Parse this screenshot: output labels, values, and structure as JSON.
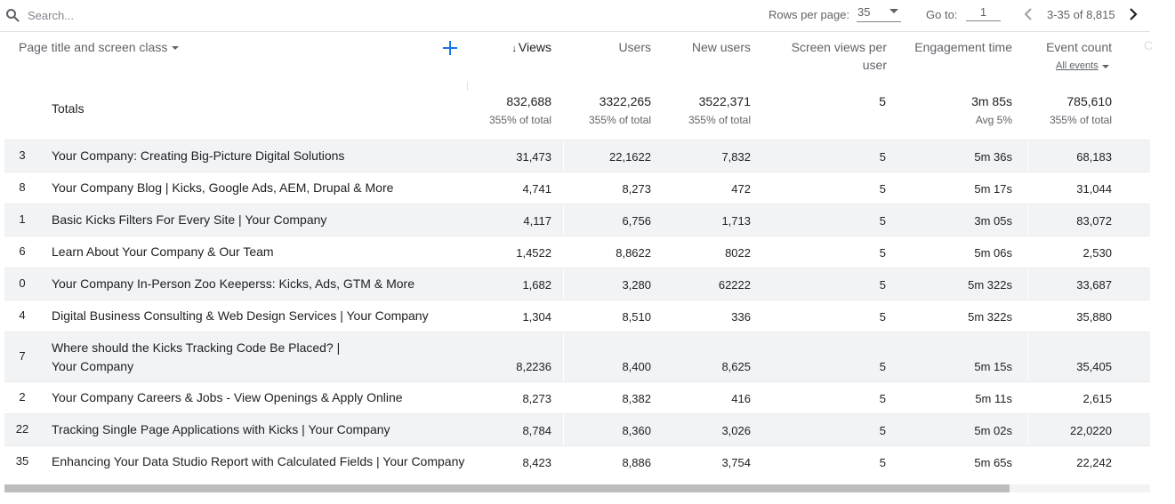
{
  "toolbar": {
    "search_placeholder": "Search...",
    "search_value": "",
    "rows_per_page_label": "Rows per page:",
    "rows_per_page_value": "35",
    "go_to_label": "Go to:",
    "go_to_value": "1",
    "range_text": "3-35 of 8,815",
    "prev_icon": "chevron-left-icon",
    "next_icon": "chevron-right-icon",
    "search_icon": "search-icon"
  },
  "header": {
    "dimension_label": "Page title and screen class",
    "add_icon": "plus-icon",
    "sort_arrow": "↓",
    "columns": [
      {
        "key": "views",
        "label": "Views"
      },
      {
        "key": "users",
        "label": "Users"
      },
      {
        "key": "new_users",
        "label": "New users"
      },
      {
        "key": "svpu",
        "label": "Screen views per user"
      },
      {
        "key": "engagement",
        "label": "Engagement time"
      },
      {
        "key": "events",
        "label": "Event count"
      }
    ],
    "events_filter": "All events",
    "accent_color": "#1a73e8"
  },
  "totals": {
    "label": "Totals",
    "views": "832,688",
    "views_sub": "355% of total",
    "users": "3322,265",
    "users_sub": "355% of total",
    "new_users": "3522,371",
    "new_users_sub": "355% of total",
    "svpu": "5",
    "engagement": "3m 85s",
    "engagement_sub": "Avg 5%",
    "events": "785,610",
    "events_sub": "355% of total"
  },
  "rows": [
    {
      "idx": "3",
      "title": [
        "Your Company: Creating Big-Picture Digital Solutions"
      ],
      "views": "31,473",
      "users": "22,1622",
      "new_users": "7,832",
      "svpu": "5",
      "engagement": "5m 36s",
      "events": "68,183"
    },
    {
      "idx": "8",
      "title": [
        "Your Company Blog | Kicks, Google Ads, AEM, Drupal & More"
      ],
      "views": "4,741",
      "users": "8,273",
      "new_users": "472",
      "svpu": "5",
      "engagement": "5m 17s",
      "events": "31,044"
    },
    {
      "idx": "1",
      "title": [
        "Basic Kicks Filters For Every Site | Your Company"
      ],
      "views": "4,117",
      "users": "6,756",
      "new_users": "1,713",
      "svpu": "5",
      "engagement": "3m 05s",
      "events": "83,072"
    },
    {
      "idx": "6",
      "title": [
        "Learn About Your Company & Our Team"
      ],
      "views": "1,4522",
      "users": "8,8622",
      "new_users": "8022",
      "svpu": "5",
      "engagement": "5m 06s",
      "events": "2,530"
    },
    {
      "idx": "0",
      "title": [
        "Your Company In-Person Zoo Keeperss: Kicks, Ads, GTM & More"
      ],
      "views": "1,682",
      "users": "3,280",
      "new_users": "62222",
      "svpu": "5",
      "engagement": "5m 322s",
      "events": "33,687"
    },
    {
      "idx": "4",
      "title": [
        "Digital Business Consulting & Web Design Services | Your Company"
      ],
      "views": "1,304",
      "users": "8,510",
      "new_users": "336",
      "svpu": "5",
      "engagement": "5m 322s",
      "events": "35,880"
    },
    {
      "idx": "7",
      "title": [
        "Where should the Kicks Tracking Code Be Placed? |",
        "Your Company"
      ],
      "views": "8,2236",
      "users": "8,400",
      "new_users": "8,625",
      "svpu": "5",
      "engagement": "5m 15s",
      "events": "35,405"
    },
    {
      "idx": "2",
      "title": [
        "Your Company Careers & Jobs - View Openings & Apply Online"
      ],
      "views": "8,273",
      "users": "8,382",
      "new_users": "416",
      "svpu": "5",
      "engagement": "5m 11s",
      "events": "2,615"
    },
    {
      "idx": "22",
      "title": [
        "Tracking Single Page Applications with Kicks | Your Company"
      ],
      "views": "8,784",
      "users": "8,360",
      "new_users": "3,026",
      "svpu": "5",
      "engagement": "5m 02s",
      "events": "22,0220"
    },
    {
      "idx": "35",
      "title": [
        "Enhancing Your Data Studio Report with Calculated Fields | Your Company"
      ],
      "views": "8,423",
      "users": "8,886",
      "new_users": "3,754",
      "svpu": "5",
      "engagement": "5m 65s",
      "events": "22,242"
    }
  ]
}
